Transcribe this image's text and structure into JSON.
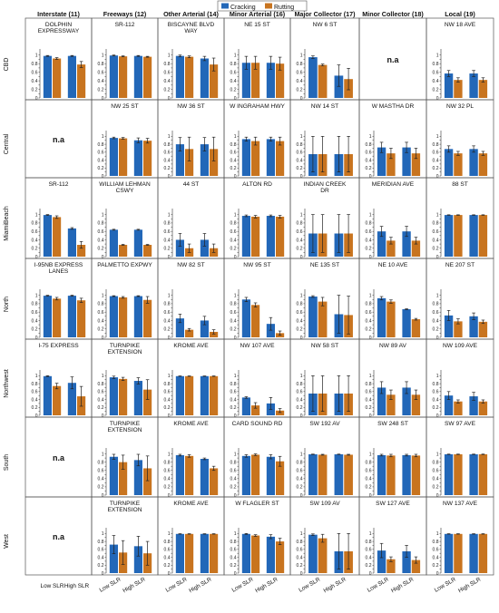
{
  "chart_data": {
    "type": "bar",
    "legend": {
      "placement": "top-center",
      "entries": [
        "Cracking",
        "Rutting"
      ]
    },
    "colors": {
      "Cracking": "#2267b8",
      "Rutting": "#c8741f",
      "error_bar": "#222222"
    },
    "columns": [
      "Interstate (11)",
      "Freeways (12)",
      "Other Arterial (14)",
      "Minor Arterial (16)",
      "Major Collector (17)",
      "Minor Collector (18)",
      "Local (19)"
    ],
    "rows": [
      "CBD",
      "Central",
      "MiamiBeach",
      "North",
      "Northwest",
      "South",
      "West"
    ],
    "categories": [
      "Low SLR",
      "High SLR"
    ],
    "ylim": [
      0,
      1.1
    ],
    "yticks": [
      "0",
      "0.1",
      "0.2",
      "0.3",
      "0.4",
      "0.5",
      "0.6",
      "0.7",
      "0.8",
      "0.9",
      "1"
    ],
    "na_label": "n.a",
    "grid": false,
    "panels": [
      [
        {
          "title": "DOLPHIN EXPRESSWAY",
          "values": [
            [
              0.98,
              0.92
            ],
            [
              0.98,
              0.78
            ]
          ],
          "errors": [
            [
              0.01,
              0.02
            ],
            [
              0.01,
              0.07
            ]
          ]
        },
        {
          "title": "SR-112",
          "values": [
            [
              0.99,
              0.97
            ],
            [
              0.98,
              0.96
            ]
          ],
          "errors": [
            [
              0.01,
              0.01
            ],
            [
              0.01,
              0.01
            ]
          ]
        },
        {
          "title": "BISCAYNE BLVD WAY",
          "values": [
            [
              0.98,
              0.96
            ],
            [
              0.92,
              0.78
            ]
          ],
          "errors": [
            [
              0.02,
              0.02
            ],
            [
              0.05,
              0.15
            ]
          ]
        },
        {
          "title": "NE 15 ST",
          "values": [
            [
              0.82,
              0.82
            ],
            [
              0.82,
              0.8
            ]
          ],
          "errors": [
            [
              0.15,
              0.15
            ],
            [
              0.15,
              0.15
            ]
          ]
        },
        {
          "title": "NW 6 ST",
          "values": [
            [
              0.95,
              0.77
            ],
            [
              0.52,
              0.44
            ]
          ],
          "errors": [
            [
              0.03,
              0.02
            ],
            [
              0.25,
              0.25
            ]
          ]
        },
        null,
        {
          "title": "NW 18 AVE",
          "values": [
            [
              0.57,
              0.42
            ],
            [
              0.57,
              0.42
            ]
          ],
          "errors": [
            [
              0.07,
              0.05
            ],
            [
              0.07,
              0.05
            ]
          ]
        }
      ],
      [
        null,
        {
          "title": "NW 25 ST",
          "values": [
            [
              0.96,
              0.95
            ],
            [
              0.9,
              0.89
            ]
          ],
          "errors": [
            [
              0.02,
              0.02
            ],
            [
              0.06,
              0.06
            ]
          ]
        },
        {
          "title": "NW 36 ST",
          "values": [
            [
              0.8,
              0.68
            ],
            [
              0.8,
              0.68
            ]
          ],
          "errors": [
            [
              0.17,
              0.3
            ],
            [
              0.17,
              0.3
            ]
          ]
        },
        {
          "title": "W INGRAHAM HWY",
          "values": [
            [
              0.93,
              0.88
            ],
            [
              0.93,
              0.88
            ]
          ],
          "errors": [
            [
              0.05,
              0.1
            ],
            [
              0.05,
              0.1
            ]
          ]
        },
        {
          "title": "NW 14 ST",
          "values": [
            [
              0.55,
              0.55
            ],
            [
              0.55,
              0.55
            ]
          ],
          "errors": [
            [
              0.45,
              0.45
            ],
            [
              0.45,
              0.45
            ]
          ]
        },
        {
          "title": "W MASTHA DR",
          "values": [
            [
              0.72,
              0.57
            ],
            [
              0.72,
              0.57
            ]
          ],
          "errors": [
            [
              0.13,
              0.13
            ],
            [
              0.13,
              0.13
            ]
          ]
        },
        {
          "title": "NW 32 PL",
          "values": [
            [
              0.68,
              0.57
            ],
            [
              0.68,
              0.57
            ]
          ],
          "errors": [
            [
              0.08,
              0.05
            ],
            [
              0.08,
              0.05
            ]
          ]
        }
      ],
      [
        {
          "title": "SR-112",
          "values": [
            [
              0.99,
              0.94
            ],
            [
              0.67,
              0.28
            ]
          ],
          "errors": [
            [
              0.01,
              0.03
            ],
            [
              0.02,
              0.08
            ]
          ]
        },
        {
          "title": "WILLIAM LEHMAN CSWY",
          "values": [
            [
              0.64,
              0.28
            ],
            [
              0.64,
              0.28
            ]
          ],
          "errors": [
            [
              0.01,
              0.01
            ],
            [
              0.01,
              0.01
            ]
          ]
        },
        {
          "title": "44 ST",
          "values": [
            [
              0.4,
              0.2
            ],
            [
              0.4,
              0.2
            ]
          ],
          "errors": [
            [
              0.15,
              0.1
            ],
            [
              0.15,
              0.1
            ]
          ]
        },
        {
          "title": "ALTON RD",
          "values": [
            [
              0.97,
              0.95
            ],
            [
              0.97,
              0.95
            ]
          ],
          "errors": [
            [
              0.02,
              0.03
            ],
            [
              0.02,
              0.03
            ]
          ]
        },
        {
          "title": "INDIAN CREEK DR",
          "values": [
            [
              0.55,
              0.55
            ],
            [
              0.55,
              0.55
            ]
          ],
          "errors": [
            [
              0.45,
              0.45
            ],
            [
              0.45,
              0.45
            ]
          ]
        },
        {
          "title": "MERIDIAN AVE",
          "values": [
            [
              0.6,
              0.38
            ],
            [
              0.6,
              0.38
            ]
          ],
          "errors": [
            [
              0.12,
              0.08
            ],
            [
              0.12,
              0.08
            ]
          ]
        },
        {
          "title": "88 ST",
          "values": [
            [
              0.99,
              0.99
            ],
            [
              0.99,
              0.99
            ]
          ],
          "errors": [
            [
              0.005,
              0.005
            ],
            [
              0.005,
              0.005
            ]
          ]
        }
      ],
      [
        {
          "title": "I-95NB EXPRESS LANES",
          "values": [
            [
              0.99,
              0.92
            ],
            [
              0.99,
              0.88
            ]
          ],
          "errors": [
            [
              0.01,
              0.03
            ],
            [
              0.01,
              0.05
            ]
          ]
        },
        {
          "title": "PALMETTO EXPWY",
          "values": [
            [
              0.98,
              0.95
            ],
            [
              0.98,
              0.89
            ]
          ],
          "errors": [
            [
              0.01,
              0.02
            ],
            [
              0.01,
              0.08
            ]
          ]
        },
        {
          "title": "NW 82 ST",
          "values": [
            [
              0.45,
              0.18
            ],
            [
              0.4,
              0.13
            ]
          ],
          "errors": [
            [
              0.1,
              0.03
            ],
            [
              0.1,
              0.05
            ]
          ]
        },
        {
          "title": "NW 95 ST",
          "values": [
            [
              0.9,
              0.77
            ],
            [
              0.32,
              0.1
            ]
          ],
          "errors": [
            [
              0.05,
              0.05
            ],
            [
              0.15,
              0.05
            ]
          ]
        },
        {
          "title": "NE 135 ST",
          "values": [
            [
              0.97,
              0.85
            ],
            [
              0.55,
              0.53
            ]
          ],
          "errors": [
            [
              0.02,
              0.1
            ],
            [
              0.45,
              0.45
            ]
          ]
        },
        {
          "title": "NE 10 AVE",
          "values": [
            [
              0.93,
              0.85
            ],
            [
              0.67,
              0.43
            ]
          ],
          "errors": [
            [
              0.04,
              0.04
            ],
            [
              0.01,
              0.02
            ]
          ]
        },
        {
          "title": "NE 207 ST",
          "values": [
            [
              0.52,
              0.38
            ],
            [
              0.5,
              0.37
            ]
          ],
          "errors": [
            [
              0.12,
              0.06
            ],
            [
              0.08,
              0.04
            ]
          ]
        }
      ],
      [
        {
          "title": "I-75 EXPRESS",
          "values": [
            [
              0.99,
              0.74
            ],
            [
              0.82,
              0.48
            ]
          ],
          "errors": [
            [
              0.01,
              0.07
            ],
            [
              0.15,
              0.25
            ]
          ]
        },
        {
          "title": "TURNPIKE EXTENSION",
          "values": [
            [
              0.96,
              0.92
            ],
            [
              0.87,
              0.65
            ]
          ],
          "errors": [
            [
              0.03,
              0.04
            ],
            [
              0.08,
              0.25
            ]
          ]
        },
        {
          "title": "KROME AVE",
          "values": [
            [
              0.99,
              0.99
            ],
            [
              0.99,
              0.99
            ]
          ],
          "errors": [
            [
              0.005,
              0.005
            ],
            [
              0.005,
              0.005
            ]
          ]
        },
        {
          "title": "NW 107 AVE",
          "values": [
            [
              0.45,
              0.25
            ],
            [
              0.3,
              0.12
            ]
          ],
          "errors": [
            [
              0.02,
              0.07
            ],
            [
              0.15,
              0.05
            ]
          ]
        },
        {
          "title": "NW 58 ST",
          "values": [
            [
              0.55,
              0.55
            ],
            [
              0.55,
              0.55
            ]
          ],
          "errors": [
            [
              0.45,
              0.45
            ],
            [
              0.45,
              0.45
            ]
          ]
        },
        {
          "title": "NW 89 AV",
          "values": [
            [
              0.7,
              0.52
            ],
            [
              0.7,
              0.52
            ]
          ],
          "errors": [
            [
              0.15,
              0.12
            ],
            [
              0.15,
              0.12
            ]
          ]
        },
        {
          "title": "NW 109 AVE",
          "values": [
            [
              0.5,
              0.35
            ],
            [
              0.48,
              0.35
            ]
          ],
          "errors": [
            [
              0.1,
              0.04
            ],
            [
              0.1,
              0.04
            ]
          ]
        }
      ],
      [
        null,
        {
          "title": "TURNPIKE EXTENSION",
          "values": [
            [
              0.93,
              0.8
            ],
            [
              0.85,
              0.65
            ]
          ],
          "errors": [
            [
              0.06,
              0.17
            ],
            [
              0.14,
              0.3
            ]
          ]
        },
        {
          "title": "KROME AVE",
          "values": [
            [
              0.97,
              0.95
            ],
            [
              0.88,
              0.65
            ]
          ],
          "errors": [
            [
              0.02,
              0.03
            ],
            [
              0.02,
              0.05
            ]
          ]
        },
        {
          "title": "CARD SOUND RD",
          "values": [
            [
              0.95,
              0.98
            ],
            [
              0.93,
              0.82
            ]
          ],
          "errors": [
            [
              0.03,
              0.02
            ],
            [
              0.05,
              0.12
            ]
          ]
        },
        {
          "title": "SW 192 AV",
          "values": [
            [
              0.99,
              0.98
            ],
            [
              0.99,
              0.98
            ]
          ],
          "errors": [
            [
              0.005,
              0.01
            ],
            [
              0.005,
              0.01
            ]
          ]
        },
        {
          "title": "SW 248 ST",
          "values": [
            [
              0.97,
              0.96
            ],
            [
              0.97,
              0.96
            ]
          ],
          "errors": [
            [
              0.02,
              0.03
            ],
            [
              0.02,
              0.03
            ]
          ]
        },
        {
          "title": "SW 97 AVE",
          "values": [
            [
              0.99,
              0.99
            ],
            [
              0.99,
              0.99
            ]
          ],
          "errors": [
            [
              0.005,
              0.005
            ],
            [
              0.005,
              0.005
            ]
          ]
        }
      ],
      [
        null,
        {
          "title": "TURNPIKE EXTENSION",
          "values": [
            [
              0.72,
              0.52
            ],
            [
              0.68,
              0.5
            ]
          ],
          "errors": [
            [
              0.23,
              0.3
            ],
            [
              0.25,
              0.3
            ]
          ]
        },
        {
          "title": "KROME AVE",
          "values": [
            [
              0.99,
              0.99
            ],
            [
              0.99,
              0.99
            ]
          ],
          "errors": [
            [
              0.005,
              0.005
            ],
            [
              0.005,
              0.005
            ]
          ]
        },
        {
          "title": "W FLAGLER ST",
          "values": [
            [
              0.99,
              0.95
            ],
            [
              0.92,
              0.8
            ]
          ],
          "errors": [
            [
              0.01,
              0.02
            ],
            [
              0.05,
              0.08
            ]
          ]
        },
        {
          "title": "SW 109 AV",
          "values": [
            [
              0.97,
              0.88
            ],
            [
              0.55,
              0.55
            ]
          ],
          "errors": [
            [
              0.02,
              0.1
            ],
            [
              0.45,
              0.45
            ]
          ]
        },
        {
          "title": "SW 127 AVE",
          "values": [
            [
              0.57,
              0.35
            ],
            [
              0.55,
              0.33
            ]
          ],
          "errors": [
            [
              0.18,
              0.06
            ],
            [
              0.15,
              0.08
            ]
          ]
        },
        {
          "title": "NW 137 AVE",
          "values": [
            [
              0.99,
              0.99
            ],
            [
              0.99,
              0.99
            ]
          ],
          "errors": [
            [
              0.005,
              0.005
            ],
            [
              0.005,
              0.005
            ]
          ]
        }
      ]
    ]
  }
}
